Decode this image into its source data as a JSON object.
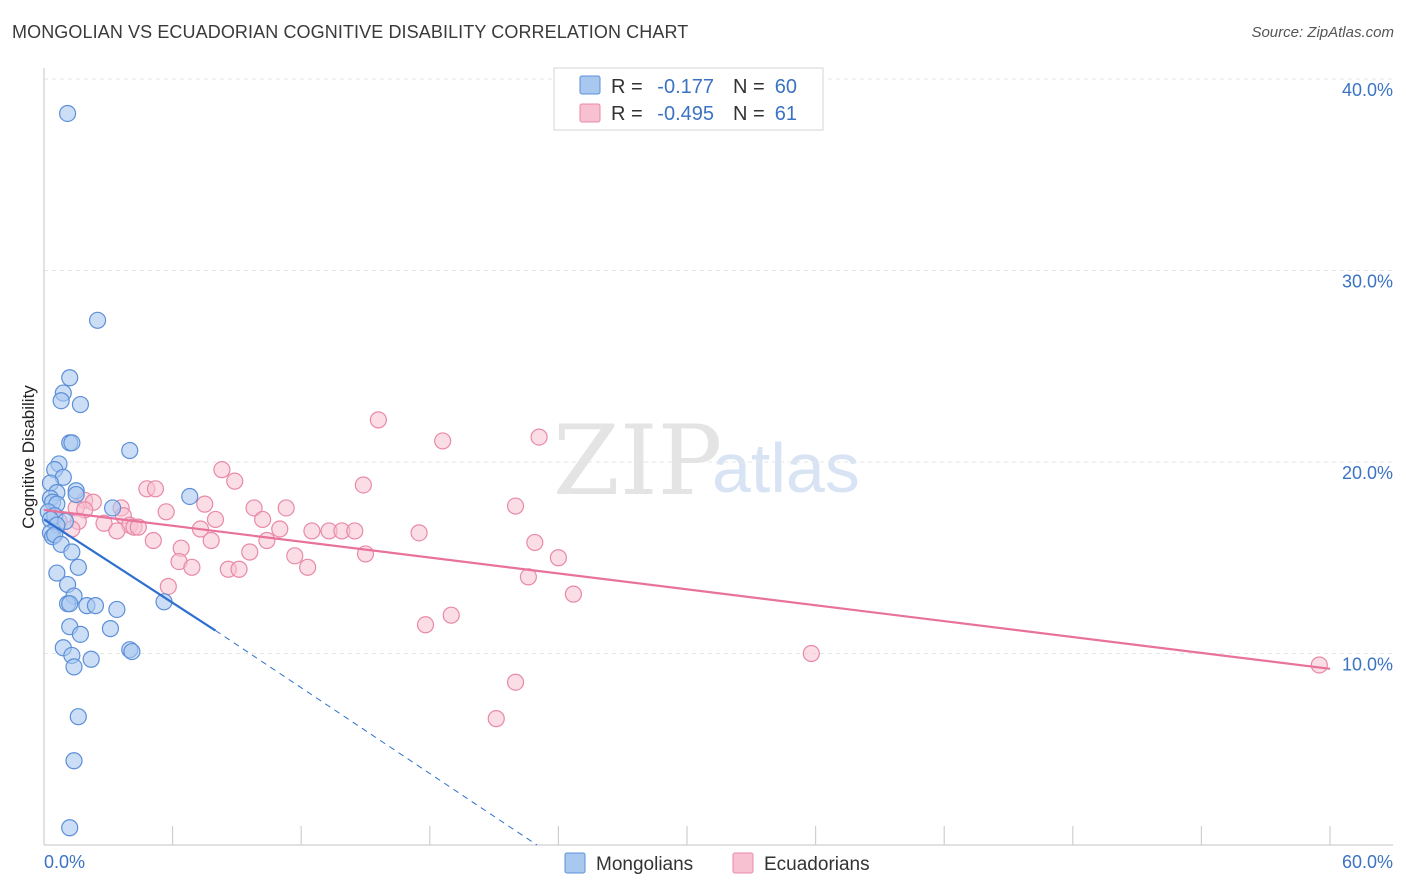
{
  "header": {
    "title": "MONGOLIAN VS ECUADORIAN COGNITIVE DISABILITY CORRELATION CHART",
    "source": "Source: ZipAtlas.com"
  },
  "watermark": {
    "part1": "ZIP",
    "part2": "atlas"
  },
  "legend": {
    "rows": [
      {
        "r_label": "R =",
        "r_value": "-0.177",
        "n_label": "N =",
        "n_value": "60",
        "color": "#7aaae8"
      },
      {
        "r_label": "R =",
        "r_value": "-0.495",
        "n_label": "N =",
        "n_value": "61",
        "color": "#f4a6bf"
      }
    ]
  },
  "bottom_legend": {
    "items": [
      "Mongolians",
      "Ecuadorians"
    ]
  },
  "colors": {
    "mongolian_fill": "#a9c8f0",
    "mongolian_stroke": "#5d8fd8",
    "mongolian_line": "#2e6fcf",
    "ecuadorian_fill": "#f7c1d2",
    "ecuadorian_stroke": "#e889a8",
    "ecuadorian_line": "#e8729a"
  },
  "chart_data": {
    "type": "scatter",
    "title": "MONGOLIAN VS ECUADORIAN COGNITIVE DISABILITY CORRELATION CHART",
    "xlabel": "",
    "ylabel": "Cognitive Disability",
    "xlim": [
      0,
      60
    ],
    "ylim": [
      0,
      40
    ],
    "x_tick_labels": [
      "0.0%",
      "60.0%"
    ],
    "y_ticks": [
      10,
      20,
      30,
      40
    ],
    "y_tick_labels": [
      "10.0%",
      "20.0%",
      "30.0%",
      "40.0%"
    ],
    "grid": true,
    "series": [
      {
        "name": "Mongolians",
        "r": -0.177,
        "n": 60,
        "trend": {
          "x_start": 0,
          "y_start": 17.0,
          "x_solid_end": 8.0,
          "y_solid_end": 11.2,
          "x_dash_end": 23.0,
          "y_dash_end": 0.0
        },
        "points": [
          [
            1.1,
            38.2
          ],
          [
            2.5,
            27.4
          ],
          [
            1.2,
            24.4
          ],
          [
            0.9,
            23.6
          ],
          [
            0.8,
            23.2
          ],
          [
            1.7,
            23.0
          ],
          [
            1.2,
            21.0
          ],
          [
            1.3,
            21.0
          ],
          [
            4.0,
            20.6
          ],
          [
            0.7,
            19.9
          ],
          [
            0.5,
            19.6
          ],
          [
            0.9,
            19.2
          ],
          [
            0.3,
            18.9
          ],
          [
            1.5,
            18.5
          ],
          [
            0.6,
            18.4
          ],
          [
            1.5,
            18.3
          ],
          [
            0.3,
            18.1
          ],
          [
            6.8,
            18.2
          ],
          [
            0.4,
            17.9
          ],
          [
            0.6,
            17.8
          ],
          [
            3.2,
            17.6
          ],
          [
            0.2,
            17.4
          ],
          [
            0.5,
            17.2
          ],
          [
            0.3,
            17.0
          ],
          [
            1.0,
            16.9
          ],
          [
            0.6,
            16.7
          ],
          [
            0.3,
            16.3
          ],
          [
            0.4,
            16.1
          ],
          [
            0.5,
            16.2
          ],
          [
            0.8,
            15.7
          ],
          [
            1.3,
            15.3
          ],
          [
            1.6,
            14.5
          ],
          [
            0.6,
            14.2
          ],
          [
            1.1,
            13.6
          ],
          [
            1.4,
            13.0
          ],
          [
            1.1,
            12.6
          ],
          [
            1.2,
            12.6
          ],
          [
            2.0,
            12.5
          ],
          [
            2.4,
            12.5
          ],
          [
            3.4,
            12.3
          ],
          [
            5.6,
            12.7
          ],
          [
            1.2,
            11.4
          ],
          [
            3.1,
            11.3
          ],
          [
            1.7,
            11.0
          ],
          [
            0.9,
            10.3
          ],
          [
            4.0,
            10.2
          ],
          [
            4.1,
            10.1
          ],
          [
            1.3,
            9.9
          ],
          [
            2.2,
            9.7
          ],
          [
            1.4,
            9.3
          ],
          [
            1.6,
            6.7
          ],
          [
            1.4,
            4.4
          ],
          [
            1.2,
            0.9
          ]
        ]
      },
      {
        "name": "Ecuadorians",
        "r": -0.495,
        "n": 61,
        "trend": {
          "x_start": 0,
          "y_start": 17.5,
          "x_end": 60,
          "y_end": 9.2
        },
        "points": [
          [
            15.6,
            22.2
          ],
          [
            18.6,
            21.1
          ],
          [
            23.1,
            21.3
          ],
          [
            8.3,
            19.6
          ],
          [
            8.9,
            19.0
          ],
          [
            14.9,
            18.8
          ],
          [
            4.8,
            18.6
          ],
          [
            5.2,
            18.6
          ],
          [
            1.9,
            18.0
          ],
          [
            2.3,
            17.9
          ],
          [
            7.5,
            17.8
          ],
          [
            3.6,
            17.6
          ],
          [
            1.5,
            17.6
          ],
          [
            1.9,
            17.5
          ],
          [
            5.7,
            17.4
          ],
          [
            9.8,
            17.6
          ],
          [
            11.3,
            17.6
          ],
          [
            22.0,
            17.7
          ],
          [
            3.7,
            17.2
          ],
          [
            8.0,
            17.0
          ],
          [
            10.2,
            17.0
          ],
          [
            1.6,
            16.9
          ],
          [
            0.7,
            16.9
          ],
          [
            2.8,
            16.8
          ],
          [
            4.0,
            16.7
          ],
          [
            4.2,
            16.6
          ],
          [
            4.4,
            16.6
          ],
          [
            1.3,
            16.5
          ],
          [
            7.3,
            16.5
          ],
          [
            3.4,
            16.4
          ],
          [
            12.5,
            16.4
          ],
          [
            13.3,
            16.4
          ],
          [
            13.9,
            16.4
          ],
          [
            14.5,
            16.4
          ],
          [
            17.5,
            16.3
          ],
          [
            11.0,
            16.5
          ],
          [
            5.1,
            15.9
          ],
          [
            7.8,
            15.9
          ],
          [
            10.4,
            15.9
          ],
          [
            22.9,
            15.8
          ],
          [
            6.4,
            15.5
          ],
          [
            9.6,
            15.3
          ],
          [
            11.7,
            15.1
          ],
          [
            15.0,
            15.2
          ],
          [
            24.0,
            15.0
          ],
          [
            6.3,
            14.8
          ],
          [
            6.9,
            14.5
          ],
          [
            8.6,
            14.4
          ],
          [
            9.1,
            14.4
          ],
          [
            12.3,
            14.5
          ],
          [
            22.6,
            14.0
          ],
          [
            5.8,
            13.5
          ],
          [
            24.7,
            13.1
          ],
          [
            19.0,
            12.0
          ],
          [
            17.8,
            11.5
          ],
          [
            35.8,
            10.0
          ],
          [
            22.0,
            8.5
          ],
          [
            21.1,
            6.6
          ],
          [
            59.5,
            9.4
          ]
        ]
      }
    ]
  }
}
